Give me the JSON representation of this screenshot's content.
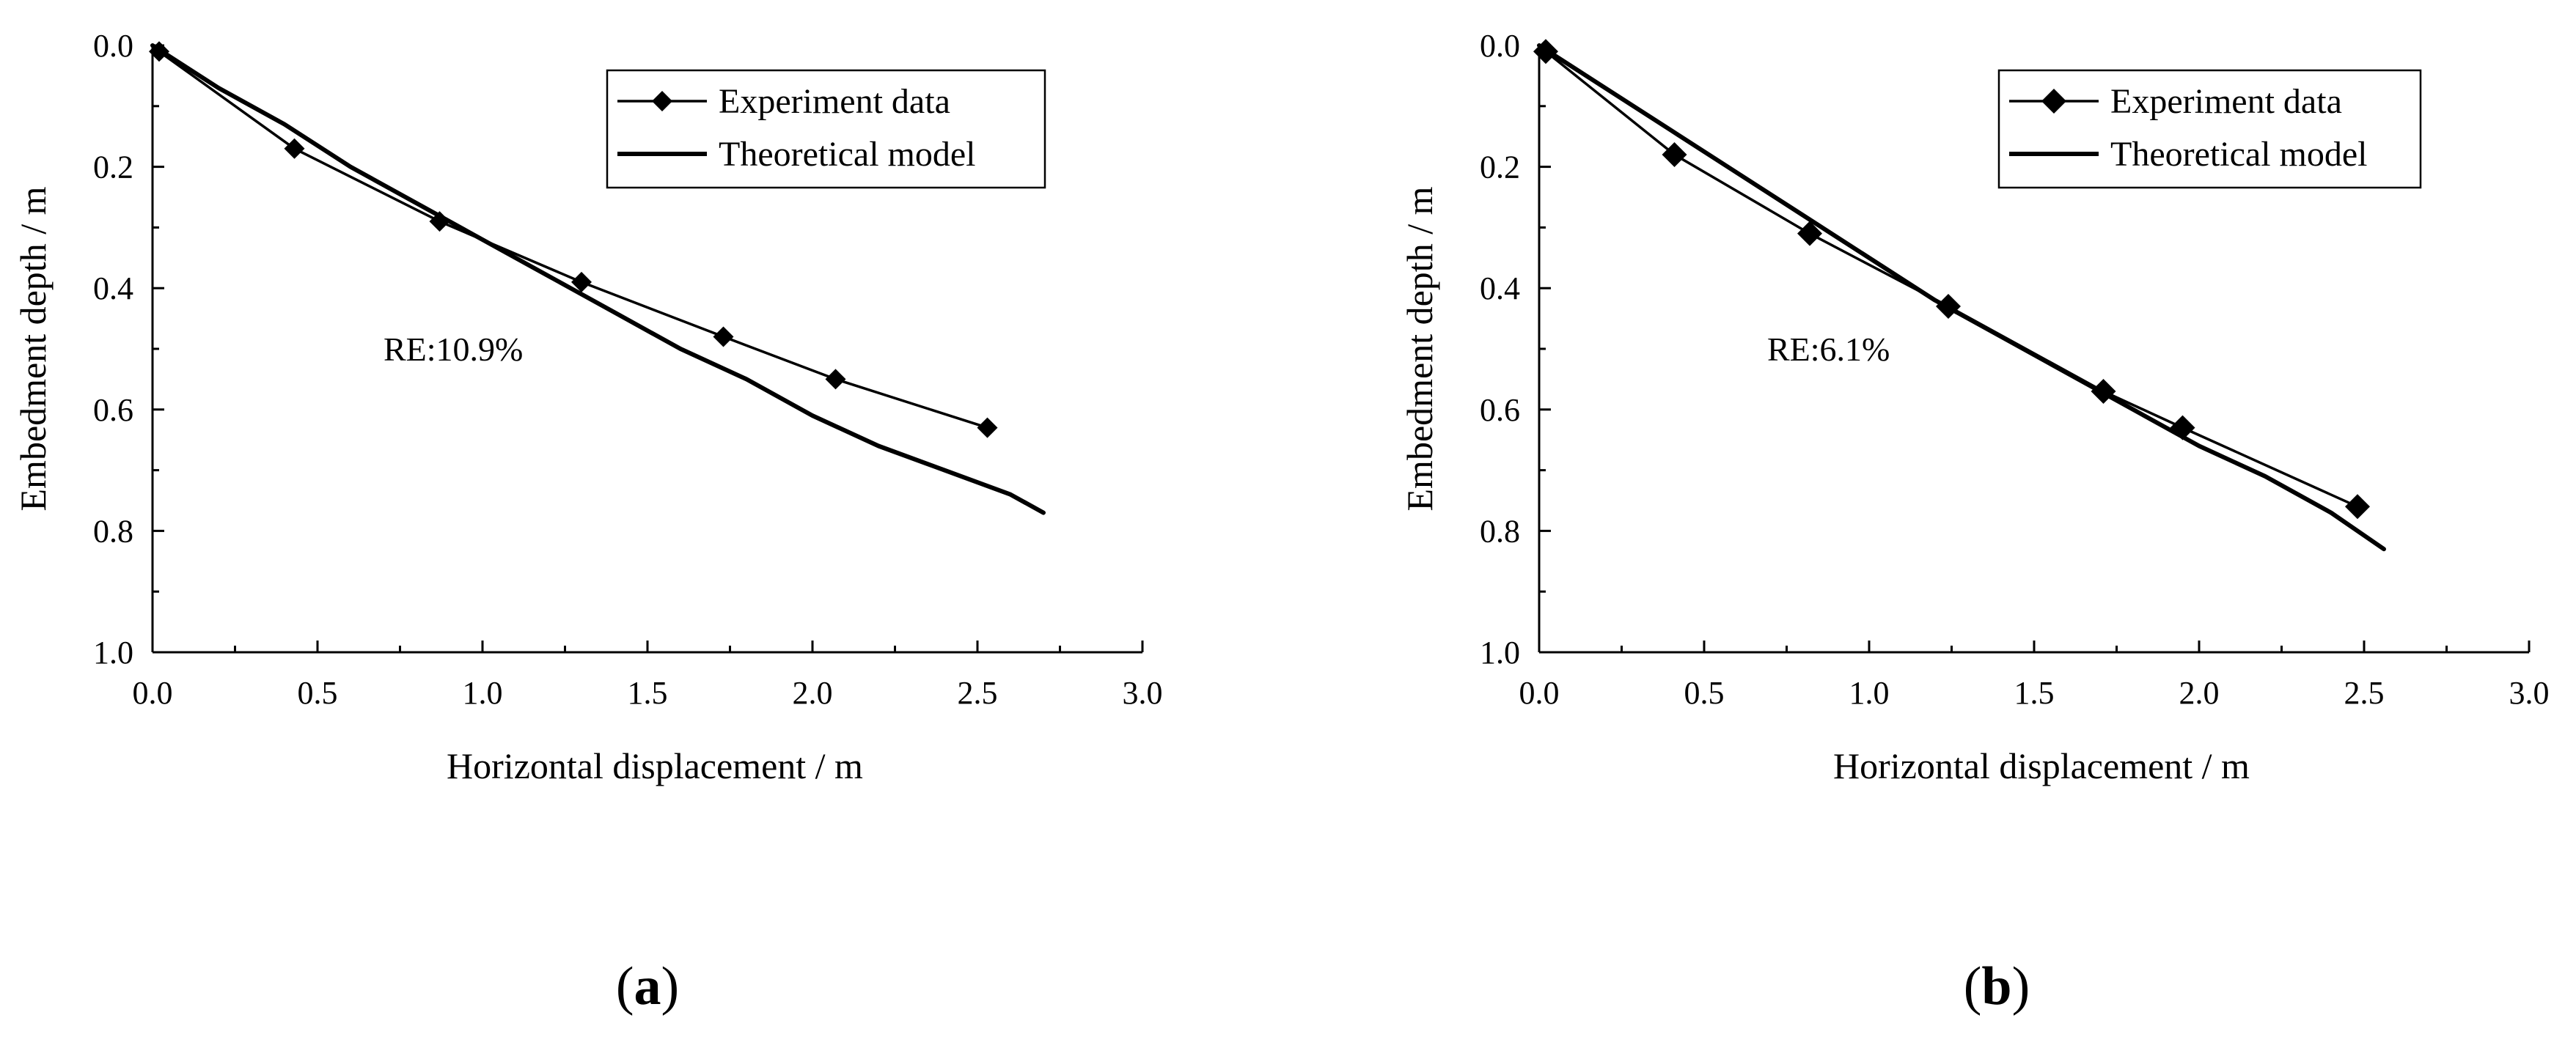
{
  "chart_data": [
    {
      "type": "line",
      "panel_label": "(a)",
      "xlabel": "Horizontal displacement / m",
      "ylabel": "Embedment depth / m",
      "xlim": [
        0.0,
        3.0
      ],
      "ylim": [
        0.0,
        1.0
      ],
      "y_inverted": true,
      "xticks": [
        "0.0",
        "0.5",
        "1.0",
        "1.5",
        "2.0",
        "2.5",
        "3.0"
      ],
      "yticks": [
        "0.0",
        "0.2",
        "0.4",
        "0.6",
        "0.8",
        "1.0"
      ],
      "legend_position": "top-right",
      "annotation": "RE:10.9%",
      "series": [
        {
          "name": "Experiment data",
          "marker": "diamond",
          "x": [
            0.02,
            0.43,
            0.87,
            1.3,
            1.73,
            2.07,
            2.53
          ],
          "y": [
            0.01,
            0.17,
            0.29,
            0.39,
            0.48,
            0.55,
            0.63
          ]
        },
        {
          "name": "Theoretical model",
          "marker": "none",
          "x": [
            0.0,
            0.2,
            0.4,
            0.6,
            0.8,
            1.0,
            1.2,
            1.4,
            1.6,
            1.8,
            2.0,
            2.2,
            2.4,
            2.6,
            2.7
          ],
          "y": [
            0.0,
            0.07,
            0.13,
            0.2,
            0.26,
            0.32,
            0.38,
            0.44,
            0.5,
            0.55,
            0.61,
            0.66,
            0.7,
            0.74,
            0.77
          ]
        }
      ]
    },
    {
      "type": "line",
      "panel_label": "(b)",
      "xlabel": "Horizontal displacement / m",
      "ylabel": "Embedment depth / m",
      "xlim": [
        0.0,
        3.0
      ],
      "ylim": [
        0.0,
        1.0
      ],
      "y_inverted": true,
      "xticks": [
        "0.0",
        "0.5",
        "1.0",
        "1.5",
        "2.0",
        "2.5",
        "3.0"
      ],
      "yticks": [
        "0.0",
        "0.2",
        "0.4",
        "0.6",
        "0.8",
        "1.0"
      ],
      "legend_position": "top-right",
      "annotation": "RE:6.1%",
      "series": [
        {
          "name": "Experiment data",
          "marker": "diamond",
          "x": [
            0.02,
            0.41,
            0.82,
            1.24,
            1.71,
            1.95,
            2.48
          ],
          "y": [
            0.01,
            0.18,
            0.31,
            0.43,
            0.57,
            0.63,
            0.76
          ]
        },
        {
          "name": "Theoretical model",
          "marker": "none",
          "x": [
            0.0,
            0.2,
            0.4,
            0.6,
            0.8,
            1.0,
            1.2,
            1.4,
            1.6,
            1.8,
            2.0,
            2.2,
            2.4,
            2.56
          ],
          "y": [
            0.0,
            0.07,
            0.14,
            0.21,
            0.28,
            0.35,
            0.42,
            0.48,
            0.54,
            0.6,
            0.66,
            0.71,
            0.77,
            0.83
          ]
        }
      ]
    }
  ]
}
